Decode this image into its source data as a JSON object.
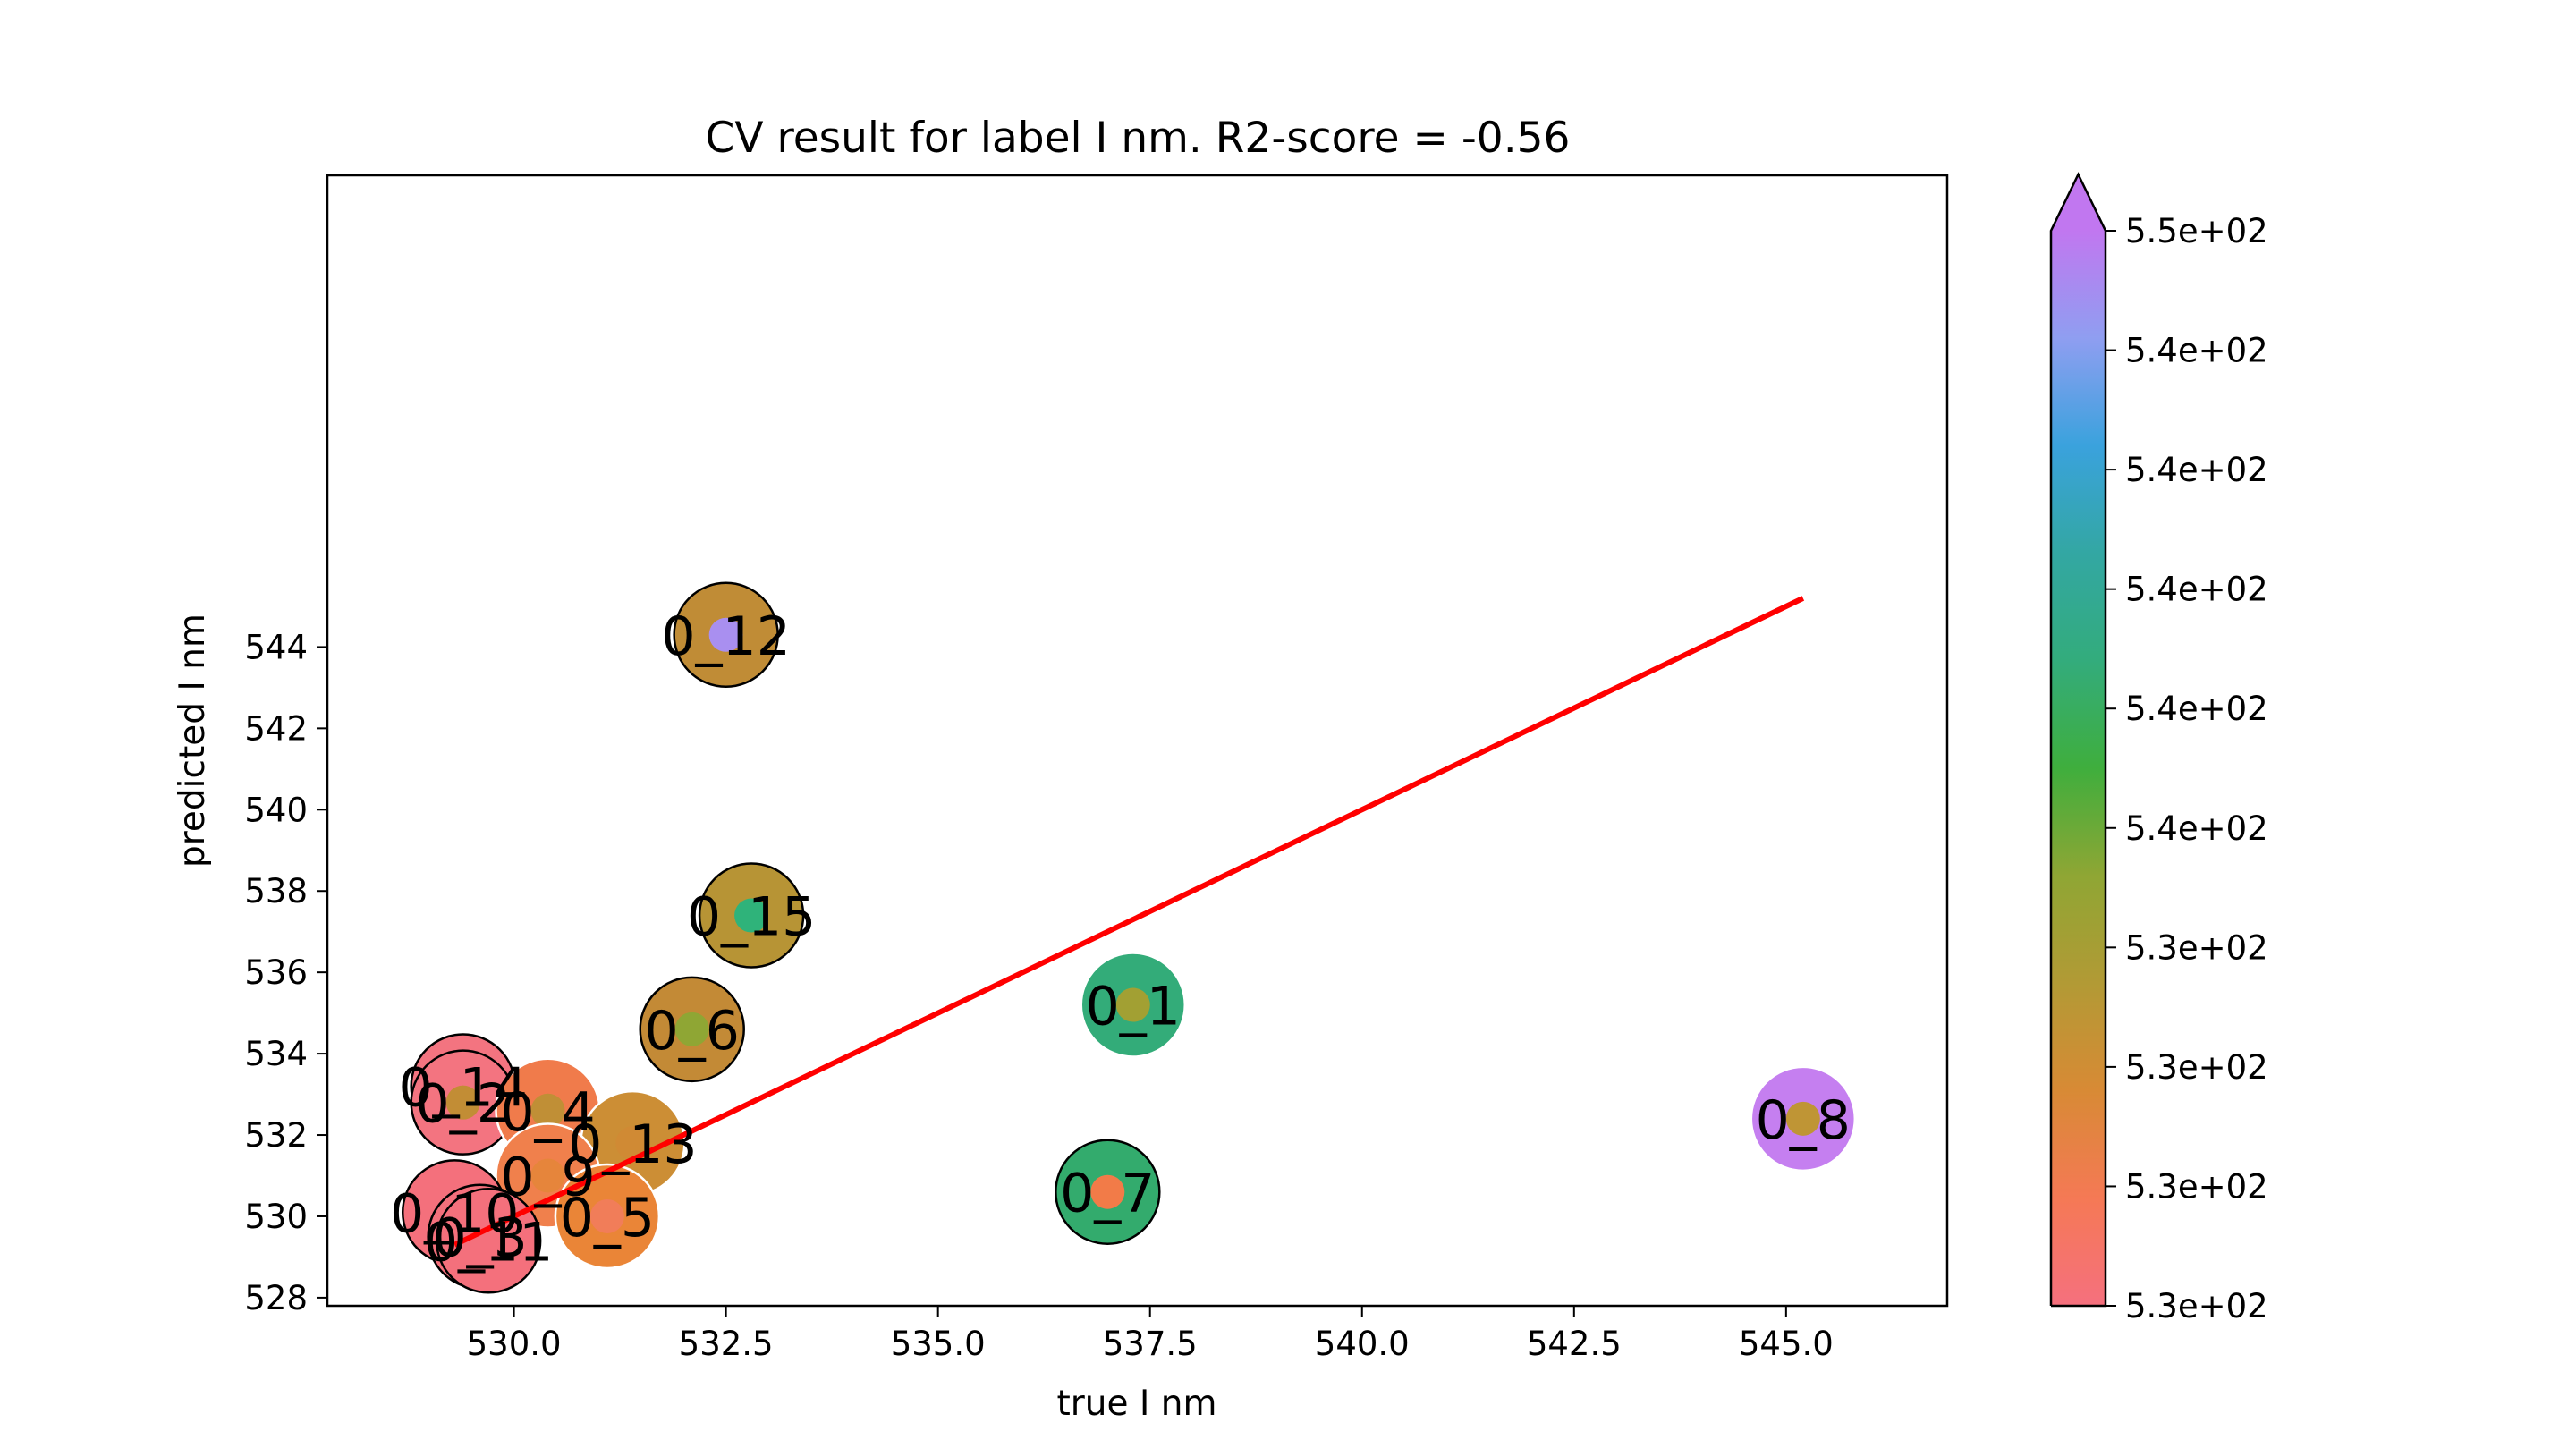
{
  "chart_data": {
    "type": "scatter",
    "title": "CV result for label I nm. R2-score = -0.56",
    "xlabel": "true I nm",
    "ylabel": "predicted I nm",
    "xlim": [
      527.8,
      546.9
    ],
    "ylim": [
      527.8,
      555.6
    ],
    "xticks": [
      "530.0",
      "532.5",
      "535.0",
      "537.5",
      "540.0",
      "542.5",
      "545.0"
    ],
    "xtick_values": [
      530.0,
      532.5,
      535.0,
      537.5,
      540.0,
      542.5,
      545.0
    ],
    "yticks": [
      "528",
      "530",
      "532",
      "534",
      "536",
      "538",
      "540",
      "542",
      "544"
    ],
    "ytick_values": [
      528,
      530,
      532,
      534,
      536,
      538,
      540,
      542,
      544
    ],
    "points": [
      {
        "label": "0_12",
        "x": 532.5,
        "y": 544.3,
        "outer": "#c08c36",
        "inner": "#a98ff0",
        "edge": "#000000"
      },
      {
        "label": "0_15",
        "x": 532.8,
        "y": 537.4,
        "outer": "#b79435",
        "inner": "#2fb37a",
        "edge": "#000000"
      },
      {
        "label": "0_1",
        "x": 537.3,
        "y": 535.2,
        "outer": "#33ac79",
        "inner": "#a2a033",
        "edge": "#ffffff"
      },
      {
        "label": "0_6",
        "x": 532.1,
        "y": 534.6,
        "outer": "#c38a36",
        "inner": "#8fa634",
        "edge": "#000000"
      },
      {
        "label": "0_14",
        "x": 529.4,
        "y": 533.2,
        "outer": "#f37480",
        "inner": "#b19b34",
        "edge": "#000000"
      },
      {
        "label": "0_2",
        "x": 529.4,
        "y": 532.8,
        "outer": "#f37480",
        "inner": "#c28d35",
        "edge": "#000000"
      },
      {
        "label": "0_4",
        "x": 530.4,
        "y": 532.6,
        "outer": "#f07b4b",
        "inner": "#c08f36",
        "edge": "#ffffff"
      },
      {
        "label": "0_13",
        "x": 531.4,
        "y": 531.8,
        "outer": "#cc8e35",
        "inner": "#d08a34",
        "edge": "#ffffff"
      },
      {
        "label": "0_8",
        "x": 545.2,
        "y": 532.4,
        "outer": "#c57ff0",
        "inner": "#bf9535",
        "edge": "#ffffff"
      },
      {
        "label": "0_9",
        "x": 530.4,
        "y": 531.0,
        "outer": "#f0804c",
        "inner": "#e6853b",
        "edge": "#ffffff"
      },
      {
        "label": "0_7",
        "x": 537.0,
        "y": 530.6,
        "outer": "#33ab6d",
        "inner": "#f27b48",
        "edge": "#000000"
      },
      {
        "label": "0_10",
        "x": 529.3,
        "y": 530.1,
        "outer": "#f4707c",
        "inner": "#f5707c",
        "edge": "#000000"
      },
      {
        "label": "0_5",
        "x": 531.1,
        "y": 530.0,
        "outer": "#ea8537",
        "inner": "#f17d59",
        "edge": "#ffffff"
      },
      {
        "label": "0_3",
        "x": 529.6,
        "y": 529.5,
        "outer": "#f4707c",
        "inner": "#f4727c",
        "edge": "#000000"
      },
      {
        "label": "0_11",
        "x": 529.7,
        "y": 529.4,
        "outer": "#f4707c",
        "inner": "#f4707c",
        "edge": "#000000"
      }
    ],
    "fit_line": {
      "x": [
        529.3,
        545.2
      ],
      "y": [
        529.3,
        545.2
      ],
      "color": "#ff0000"
    },
    "colorbar": {
      "ticks": [
        "5.5e+02",
        "5.4e+02",
        "5.4e+02",
        "5.4e+02",
        "5.4e+02",
        "5.4e+02",
        "5.3e+02",
        "5.3e+02",
        "5.3e+02",
        "5.3e+02"
      ],
      "stops": [
        "#f5707e",
        "#f57955",
        "#d88a35",
        "#b29a35",
        "#8fa634",
        "#3fae3d",
        "#33ac7c",
        "#33a7a3",
        "#3aa2dd",
        "#8f9ef1",
        "#c177f0"
      ]
    }
  }
}
